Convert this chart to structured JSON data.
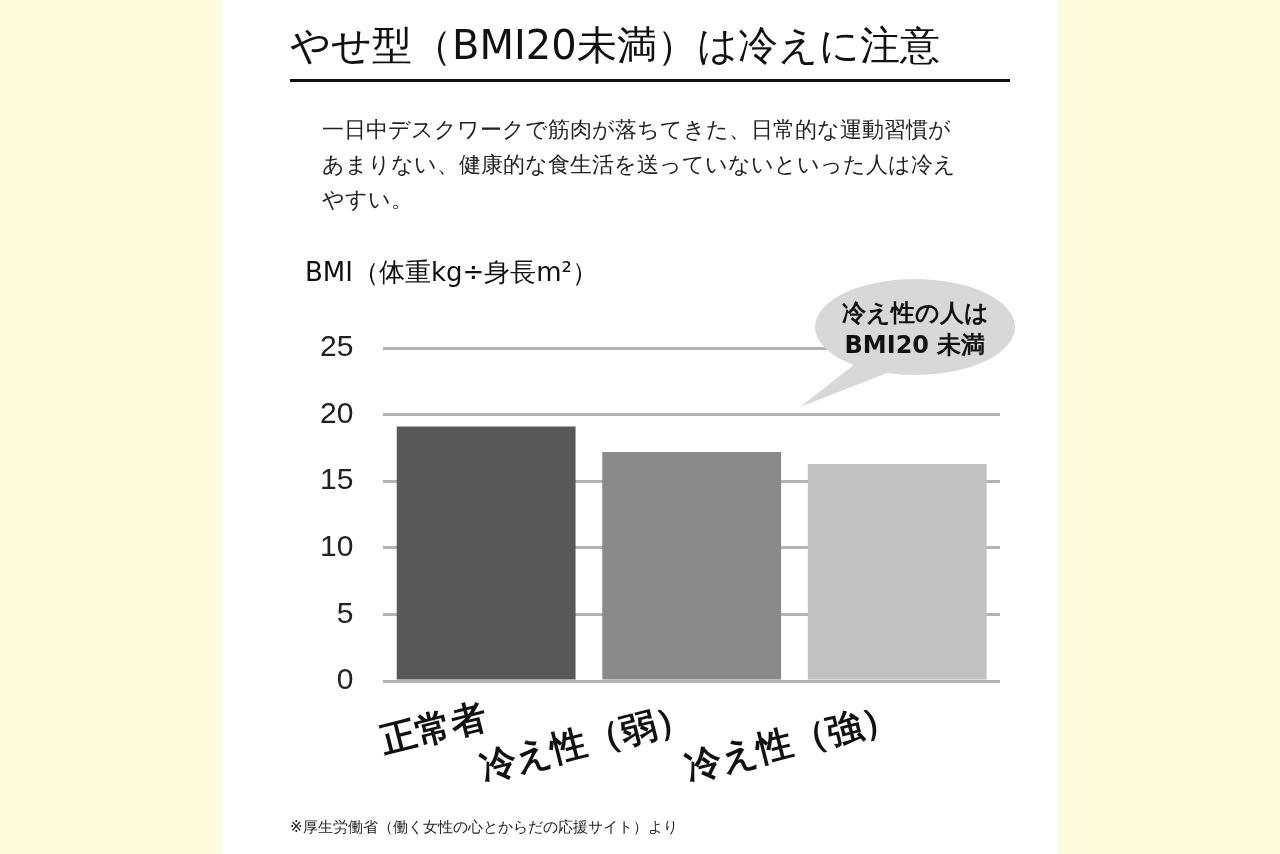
{
  "chart_data": {
    "type": "bar",
    "title": "やせ型（BMI20未満）は冷えに注意",
    "subtitle": "一日中デスクワークで筋肉が落ちてきた、日常的な運動習慣があまりない、健康的な食生活を送っていないといった人は冷えやすい。",
    "ylabel": "BMI（体重kg÷身長m²）",
    "categories": [
      "正常者",
      "冷え性（弱）",
      "冷え性（強）"
    ],
    "values": [
      19.1,
      17.2,
      16.3
    ],
    "colors": [
      "#5a5859",
      "#8a8a8a",
      "#c0c1c1"
    ],
    "ylim": [
      0,
      25
    ],
    "yticks": [
      0,
      5,
      10,
      15,
      20,
      25
    ],
    "grid": "y",
    "legend": false,
    "annotations": [
      "冷え性の人は\nBMI20 未満",
      "※厚生労働省（働く女性の心とからだの応援サイト）より"
    ]
  }
}
